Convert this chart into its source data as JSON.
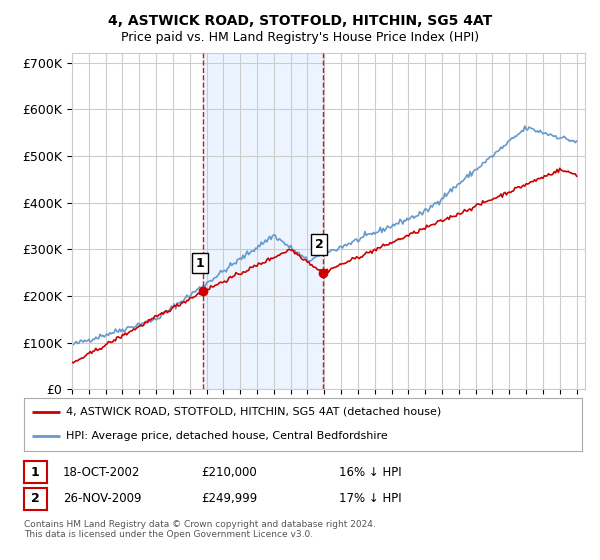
{
  "title": "4, ASTWICK ROAD, STOTFOLD, HITCHIN, SG5 4AT",
  "subtitle": "Price paid vs. HM Land Registry's House Price Index (HPI)",
  "ylabel_ticks": [
    "£0",
    "£100K",
    "£200K",
    "£300K",
    "£400K",
    "£500K",
    "£600K",
    "£700K"
  ],
  "ylim": [
    0,
    720000
  ],
  "xlim_start": 1995,
  "xlim_end": 2025.5,
  "sale1_x": 2002.8,
  "sale1_y": 210000,
  "sale1_label": "1",
  "sale2_x": 2009.9,
  "sale2_y": 249999,
  "sale2_label": "2",
  "legend_line1": "4, ASTWICK ROAD, STOTFOLD, HITCHIN, SG5 4AT (detached house)",
  "legend_line2": "HPI: Average price, detached house, Central Bedfordshire",
  "annotation1_date": "18-OCT-2002",
  "annotation1_price": "£210,000",
  "annotation1_hpi": "16% ↓ HPI",
  "annotation2_date": "26-NOV-2009",
  "annotation2_price": "£249,999",
  "annotation2_hpi": "17% ↓ HPI",
  "footer": "Contains HM Land Registry data © Crown copyright and database right 2024.\nThis data is licensed under the Open Government Licence v3.0.",
  "color_red": "#cc0000",
  "color_blue": "#6699cc",
  "color_grid": "#cccccc",
  "color_vline": "#cc0000",
  "color_bg_shade": "#ddeeff",
  "background_color": "#ffffff"
}
